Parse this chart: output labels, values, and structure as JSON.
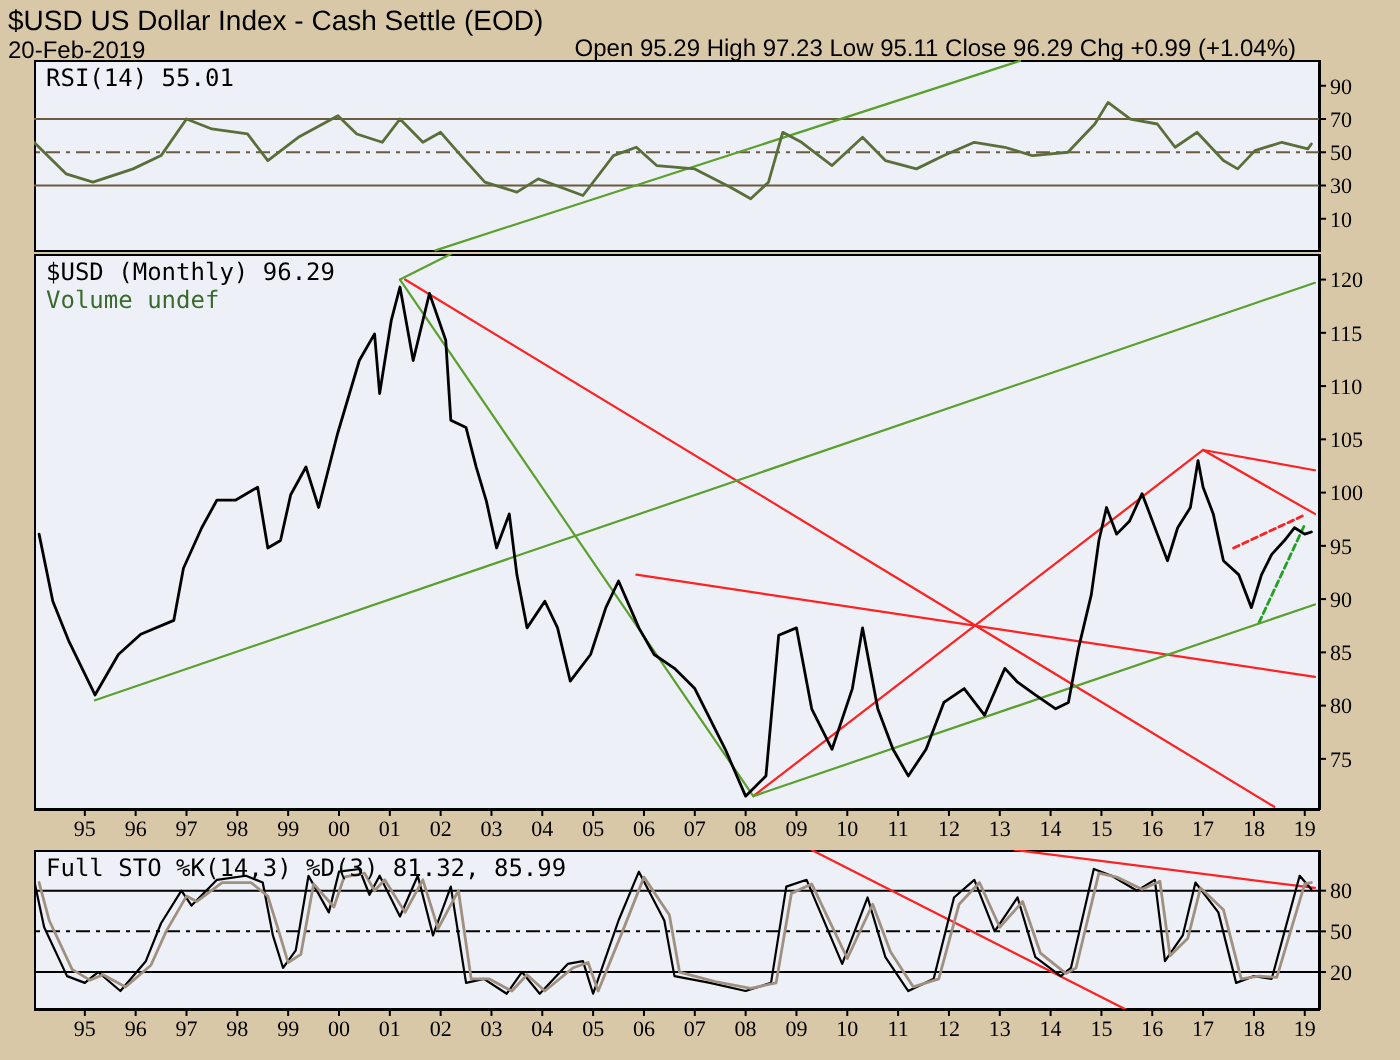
{
  "chart_data": [
    {
      "type": "line",
      "title": "$USD US Dollar Index - Cash Settle (EOD)",
      "subtitle": "20-Feb-2019",
      "annotations": [
        "Open 95.29  High 97.23  Low 95.11  Close 96.29  Chg +0.99 (+1.04%)",
        "RSI(14) 55.01"
      ],
      "tick_labels": "y",
      "marker": "none",
      "xlim": [
        1994,
        2019.3
      ],
      "ylim": [
        -10,
        105.5
      ],
      "yticks": [
        10,
        30,
        50,
        70,
        90
      ],
      "ref_lines": [
        {
          "axis": "y",
          "value": 70,
          "color": "#6b5a40",
          "line_style": "solid"
        },
        {
          "axis": "y",
          "value": 50,
          "color": "#6b5a40",
          "line_style": "dashed"
        },
        {
          "axis": "y",
          "value": 30,
          "color": "#6b5a40",
          "line_style": "solid"
        }
      ],
      "series": [
        {
          "color": "#5a6e3a",
          "line_style": "solid",
          "x": [
            1994.0,
            1994.63,
            1995.16,
            1995.95,
            1996.5,
            1997.0,
            1997.5,
            1998.2,
            1998.6,
            1999.2,
            1999.98,
            2000.35,
            2000.85,
            2001.2,
            2001.65,
            2002.0,
            2002.4,
            2002.87,
            2003.5,
            2003.92,
            2004.8,
            2005.4,
            2005.85,
            2006.25,
            2007.0,
            2007.7,
            2008.1,
            2008.45,
            2008.73,
            2009.1,
            2009.7,
            2010.3,
            2010.75,
            2011.36,
            2011.9,
            2012.5,
            2013.1,
            2013.64,
            2014.34,
            2014.87,
            2015.13,
            2015.57,
            2016.1,
            2016.45,
            2016.88,
            2017.4,
            2017.68,
            2018.02,
            2018.55,
            2019.06,
            2019.13
          ],
          "values": [
            56,
            37,
            32,
            40,
            48,
            70,
            64,
            61,
            45,
            59,
            72,
            61,
            56,
            70,
            56,
            62,
            48,
            32,
            26,
            34,
            24,
            48,
            53,
            42,
            40,
            29,
            22,
            32,
            62,
            56,
            42,
            59,
            45,
            40,
            48,
            56,
            53,
            48,
            50,
            67,
            80,
            70,
            67,
            53,
            62,
            45,
            40,
            51,
            56,
            52,
            55
          ]
        },
        {
          "color": "#5aa02c",
          "line_style": "solid",
          "x": [
            2001.9,
            2013.4
          ],
          "values": [
            -9,
            105
          ]
        }
      ]
    },
    {
      "type": "line",
      "annotations": [
        "$USD (Monthly) 96.29",
        "Volume undef"
      ],
      "marker": "none",
      "xlim": [
        1994,
        2019.3
      ],
      "ylim": [
        70.2,
        122.4
      ],
      "yticks": [
        75,
        80,
        85,
        90,
        95,
        100,
        105,
        110,
        115,
        120
      ],
      "xticks": [
        {
          "value": 1995,
          "label": "95"
        },
        {
          "value": 1996,
          "label": "96"
        },
        {
          "value": 1997,
          "label": "97"
        },
        {
          "value": 1998,
          "label": "98"
        },
        {
          "value": 1999,
          "label": "99"
        },
        {
          "value": 2000,
          "label": "00"
        },
        {
          "value": 2001,
          "label": "01"
        },
        {
          "value": 2002,
          "label": "02"
        },
        {
          "value": 2003,
          "label": "03"
        },
        {
          "value": 2004,
          "label": "04"
        },
        {
          "value": 2005,
          "label": "05"
        },
        {
          "value": 2006,
          "label": "06"
        },
        {
          "value": 2007,
          "label": "07"
        },
        {
          "value": 2008,
          "label": "08"
        },
        {
          "value": 2009,
          "label": "09"
        },
        {
          "value": 2010,
          "label": "10"
        },
        {
          "value": 2011,
          "label": "11"
        },
        {
          "value": 2012,
          "label": "12"
        },
        {
          "value": 2013,
          "label": "13"
        },
        {
          "value": 2014,
          "label": "14"
        },
        {
          "value": 2015,
          "label": "15"
        },
        {
          "value": 2016,
          "label": "16"
        },
        {
          "value": 2017,
          "label": "17"
        },
        {
          "value": 2018,
          "label": "18"
        },
        {
          "value": 2019,
          "label": "19"
        }
      ],
      "series": [
        {
          "color": "#000000",
          "line_style": "solid",
          "x": [
            1994.1,
            1994.37,
            1994.69,
            1995.2,
            1995.66,
            1996.1,
            1996.75,
            1996.94,
            1997.3,
            1997.6,
            1997.97,
            1998.4,
            1998.6,
            1998.85,
            1999.05,
            1999.35,
            1999.6,
            1999.97,
            2000.4,
            2000.7,
            2000.8,
            2001.03,
            2001.2,
            2001.46,
            2001.78,
            2002.1,
            2002.2,
            2002.5,
            2002.7,
            2002.9,
            2003.1,
            2003.35,
            2003.5,
            2003.7,
            2004.05,
            2004.3,
            2004.55,
            2004.95,
            2005.25,
            2005.5,
            2005.9,
            2006.2,
            2006.6,
            2007.0,
            2007.6,
            2008.0,
            2008.4,
            2008.65,
            2009.0,
            2009.3,
            2009.7,
            2010.1,
            2010.3,
            2010.6,
            2010.9,
            2011.2,
            2011.55,
            2011.9,
            2012.3,
            2012.7,
            2013.1,
            2013.35,
            2013.7,
            2014.1,
            2014.35,
            2014.55,
            2014.8,
            2014.95,
            2015.1,
            2015.3,
            2015.55,
            2015.8,
            2016.1,
            2016.3,
            2016.5,
            2016.75,
            2016.9,
            2017.0,
            2017.2,
            2017.4,
            2017.7,
            2017.95,
            2018.15,
            2018.35,
            2018.6,
            2018.8,
            2019.0,
            2019.13
          ],
          "values": [
            96.1,
            89.8,
            86,
            81,
            84.8,
            86.7,
            88,
            92.9,
            96.7,
            99.3,
            99.3,
            100.5,
            94.8,
            95.5,
            99.8,
            102.4,
            98.6,
            105.5,
            112.4,
            114.9,
            109.3,
            116.2,
            119.3,
            112.4,
            118.7,
            114.3,
            106.8,
            106.1,
            102.4,
            99.2,
            94.8,
            98,
            92.3,
            87.3,
            89.8,
            87.3,
            82.3,
            84.8,
            89.2,
            91.7,
            87.3,
            84.8,
            83.5,
            81.6,
            75.9,
            71.5,
            73.4,
            86.6,
            87.3,
            79.7,
            75.9,
            81.6,
            87.3,
            79.7,
            75.9,
            73.4,
            75.9,
            80.3,
            81.6,
            79.1,
            83.5,
            82.2,
            81,
            79.7,
            80.3,
            85.4,
            90.4,
            95.5,
            98.6,
            96.1,
            97.3,
            99.9,
            96.1,
            93.6,
            96.7,
            98.6,
            103,
            100.5,
            98,
            93.6,
            92.3,
            89.2,
            92.3,
            94.2,
            95.5,
            96.7,
            96.1,
            96.3
          ]
        },
        {
          "color": "#5aa02c",
          "line_style": "solid",
          "x": [
            1995.2,
            2019.2
          ],
          "values": [
            80.5,
            119.7
          ]
        },
        {
          "color": "#5aa02c",
          "line_style": "solid",
          "x": [
            2001.2,
            2002.2
          ],
          "values": [
            120,
            122.4
          ]
        },
        {
          "color": "#5aa02c",
          "line_style": "solid",
          "x": [
            2001.2,
            2008.15
          ],
          "values": [
            120,
            71.5
          ]
        },
        {
          "color": "#5aa02c",
          "line_style": "solid",
          "x": [
            2008.15,
            2019.2
          ],
          "values": [
            71.5,
            89.5
          ]
        },
        {
          "color": "#22a022",
          "line_style": "dotted",
          "x": [
            2018.1,
            2019.0
          ],
          "values": [
            87.8,
            97
          ]
        },
        {
          "color": "#ff2020",
          "line_style": "solid",
          "x": [
            2001.3,
            2018.4
          ],
          "values": [
            120,
            70.5
          ]
        },
        {
          "color": "#ff2020",
          "line_style": "solid",
          "x": [
            2005.85,
            2019.2
          ],
          "values": [
            92.3,
            82.7
          ]
        },
        {
          "color": "#ff2020",
          "line_style": "solid",
          "x": [
            2008.15,
            2017.0
          ],
          "values": [
            71.5,
            104
          ]
        },
        {
          "color": "#ff2020",
          "line_style": "solid",
          "x": [
            2017.0,
            2019.2
          ],
          "values": [
            104,
            102.1
          ]
        },
        {
          "color": "#ff2020",
          "line_style": "solid",
          "x": [
            2017.0,
            2019.2
          ],
          "values": [
            104,
            98
          ]
        },
        {
          "color": "#ff2020",
          "line_style": "dotted",
          "x": [
            2017.6,
            2018.95
          ],
          "values": [
            94.8,
            97.8
          ]
        }
      ]
    },
    {
      "type": "line",
      "annotations": [
        "Full STO %K(14,3) %D(3) 81.32, 85.99"
      ],
      "marker": "none",
      "xlim": [
        1994,
        2019.3
      ],
      "ylim": [
        -8,
        110
      ],
      "yticks": [
        20,
        50,
        80
      ],
      "xticks": [
        {
          "value": 1995,
          "label": "95"
        },
        {
          "value": 1996,
          "label": "96"
        },
        {
          "value": 1997,
          "label": "97"
        },
        {
          "value": 1998,
          "label": "98"
        },
        {
          "value": 1999,
          "label": "99"
        },
        {
          "value": 2000,
          "label": "00"
        },
        {
          "value": 2001,
          "label": "01"
        },
        {
          "value": 2002,
          "label": "02"
        },
        {
          "value": 2003,
          "label": "03"
        },
        {
          "value": 2004,
          "label": "04"
        },
        {
          "value": 2005,
          "label": "05"
        },
        {
          "value": 2006,
          "label": "06"
        },
        {
          "value": 2007,
          "label": "07"
        },
        {
          "value": 2008,
          "label": "08"
        },
        {
          "value": 2009,
          "label": "09"
        },
        {
          "value": 2010,
          "label": "10"
        },
        {
          "value": 2011,
          "label": "11"
        },
        {
          "value": 2012,
          "label": "12"
        },
        {
          "value": 2013,
          "label": "13"
        },
        {
          "value": 2014,
          "label": "14"
        },
        {
          "value": 2015,
          "label": "15"
        },
        {
          "value": 2016,
          "label": "16"
        },
        {
          "value": 2017,
          "label": "17"
        },
        {
          "value": 2018,
          "label": "18"
        },
        {
          "value": 2019,
          "label": "19"
        }
      ],
      "ref_lines": [
        {
          "axis": "y",
          "value": 80,
          "color": "#000000",
          "line_style": "solid"
        },
        {
          "axis": "y",
          "value": 50,
          "color": "#000000",
          "line_style": "dashed"
        },
        {
          "axis": "y",
          "value": 20,
          "color": "#000000",
          "line_style": "solid"
        }
      ],
      "series": [
        {
          "color": "#a09080",
          "line_style": "solid",
          "x": [
            1994.1,
            1994.3,
            1994.75,
            1995.1,
            1995.36,
            1995.8,
            1996.3,
            1996.6,
            1997.0,
            1997.2,
            1997.7,
            1998.27,
            1998.6,
            1998.8,
            1999.0,
            1999.25,
            1999.5,
            1999.9,
            2000.1,
            2000.5,
            2000.7,
            2000.9,
            2001.3,
            2001.65,
            2001.95,
            2002.35,
            2002.6,
            2002.95,
            2003.4,
            2003.7,
            2004.05,
            2004.6,
            2004.9,
            2005.1,
            2005.6,
            2006.0,
            2006.5,
            2006.7,
            2007.4,
            2008.1,
            2008.6,
            2008.9,
            2009.3,
            2010.0,
            2010.5,
            2010.85,
            2011.3,
            2011.8,
            2012.2,
            2012.6,
            2013.0,
            2013.45,
            2013.8,
            2014.3,
            2014.5,
            2014.95,
            2015.3,
            2015.8,
            2016.15,
            2016.35,
            2016.7,
            2016.95,
            2017.4,
            2017.75,
            2018.1,
            2018.45,
            2019.0,
            2019.13
          ],
          "values": [
            86,
            58,
            22,
            14,
            18,
            9,
            25,
            50,
            76,
            72,
            86,
            86,
            76,
            52,
            27,
            33,
            85,
            68,
            90,
            93,
            80,
            88,
            64,
            88,
            52,
            80,
            15,
            15,
            6,
            18,
            6,
            23,
            27,
            6,
            52,
            90,
            62,
            20,
            13,
            8,
            12,
            78,
            85,
            30,
            70,
            35,
            9,
            15,
            70,
            86,
            53,
            72,
            34,
            19,
            23,
            93,
            90,
            81,
            87,
            32,
            45,
            82,
            66,
            15,
            17,
            16,
            85,
            86
          ]
        },
        {
          "color": "#000000",
          "line_style": "solid",
          "x": [
            1994.0,
            1994.2,
            1994.65,
            1995.0,
            1995.26,
            1995.7,
            1996.2,
            1996.5,
            1996.9,
            1997.1,
            1997.6,
            1998.17,
            1998.5,
            1998.7,
            1998.9,
            1999.15,
            1999.4,
            1999.8,
            2000.0,
            2000.4,
            2000.6,
            2000.8,
            2001.2,
            2001.55,
            2001.85,
            2002.2,
            2002.5,
            2002.85,
            2003.3,
            2003.6,
            2003.95,
            2004.5,
            2004.8,
            2005.0,
            2005.5,
            2005.9,
            2006.4,
            2006.6,
            2007.3,
            2008.0,
            2008.5,
            2008.8,
            2009.2,
            2009.9,
            2010.4,
            2010.75,
            2011.2,
            2011.7,
            2012.1,
            2012.5,
            2012.9,
            2013.35,
            2013.7,
            2014.2,
            2014.4,
            2014.85,
            2015.2,
            2015.7,
            2016.05,
            2016.25,
            2016.6,
            2016.85,
            2017.3,
            2017.65,
            2018.0,
            2018.35,
            2018.9,
            2019.13
          ],
          "values": [
            88,
            53,
            17,
            12,
            20,
            6,
            28,
            56,
            80,
            69,
            88,
            91,
            86,
            47,
            23,
            36,
            91,
            64,
            94,
            96,
            77,
            91,
            61,
            91,
            47,
            83,
            12,
            15,
            4,
            20,
            4,
            26,
            28,
            4,
            58,
            94,
            58,
            17,
            12,
            6,
            12,
            83,
            88,
            26,
            75,
            31,
            6,
            15,
            75,
            88,
            50,
            75,
            31,
            17,
            23,
            96,
            91,
            80,
            88,
            28,
            47,
            86,
            64,
            12,
            17,
            15,
            91,
            81
          ]
        },
        {
          "color": "#ff2020",
          "line_style": "solid",
          "x": [
            2009.3,
            2015.5
          ],
          "values": [
            110,
            -8
          ]
        },
        {
          "color": "#ff2020",
          "line_style": "solid",
          "x": [
            2013.3,
            2019.2
          ],
          "values": [
            110,
            82
          ]
        }
      ]
    }
  ]
}
